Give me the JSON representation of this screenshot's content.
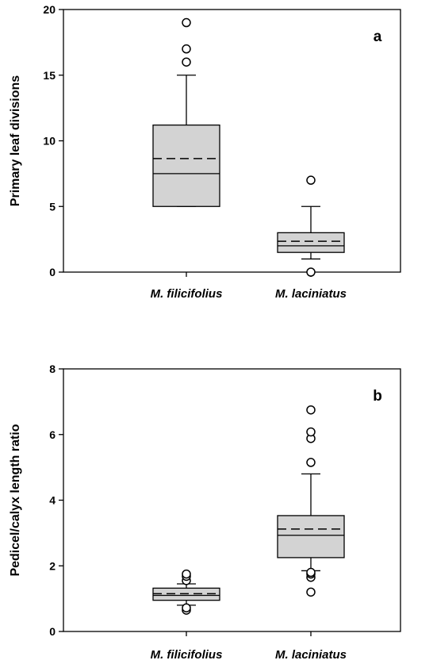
{
  "chart_data": [
    {
      "type": "box",
      "panel_label": "a",
      "ylabel": "Primary leaf divisions",
      "ylim": [
        0,
        20
      ],
      "yticks": [
        0,
        5,
        10,
        15,
        20
      ],
      "categories": [
        "M. filicifolius",
        "M. laciniatus"
      ],
      "box_color": "#d3d3d3",
      "boxes": [
        {
          "q1": 5,
          "median": 7.5,
          "mean": 8.65,
          "q3": 11.2,
          "whisker_low": 5,
          "whisker_high": 15,
          "outliers": [
            16,
            17,
            19
          ]
        },
        {
          "q1": 1.5,
          "median": 2.0,
          "mean": 2.35,
          "q3": 3.0,
          "whisker_low": 1,
          "whisker_high": 5,
          "outliers": [
            0,
            7
          ]
        }
      ]
    },
    {
      "type": "box",
      "panel_label": "b",
      "ylabel": "Pedicel/calyx length ratio",
      "ylim": [
        0,
        8
      ],
      "yticks": [
        0,
        2,
        4,
        6,
        8
      ],
      "categories": [
        "M. filicifolius",
        "M. laciniatus"
      ],
      "box_color": "#d3d3d3",
      "boxes": [
        {
          "q1": 0.95,
          "median": 1.1,
          "mean": 1.15,
          "q3": 1.32,
          "whisker_low": 0.8,
          "whisker_high": 1.45,
          "outliers": [
            0.65,
            0.72,
            1.55,
            1.68,
            1.75
          ]
        },
        {
          "q1": 2.25,
          "median": 2.93,
          "mean": 3.12,
          "q3": 3.53,
          "whisker_low": 1.85,
          "whisker_high": 4.8,
          "outliers": [
            1.2,
            1.65,
            1.75,
            1.8,
            5.15,
            5.88,
            6.08,
            6.75
          ]
        }
      ]
    }
  ]
}
